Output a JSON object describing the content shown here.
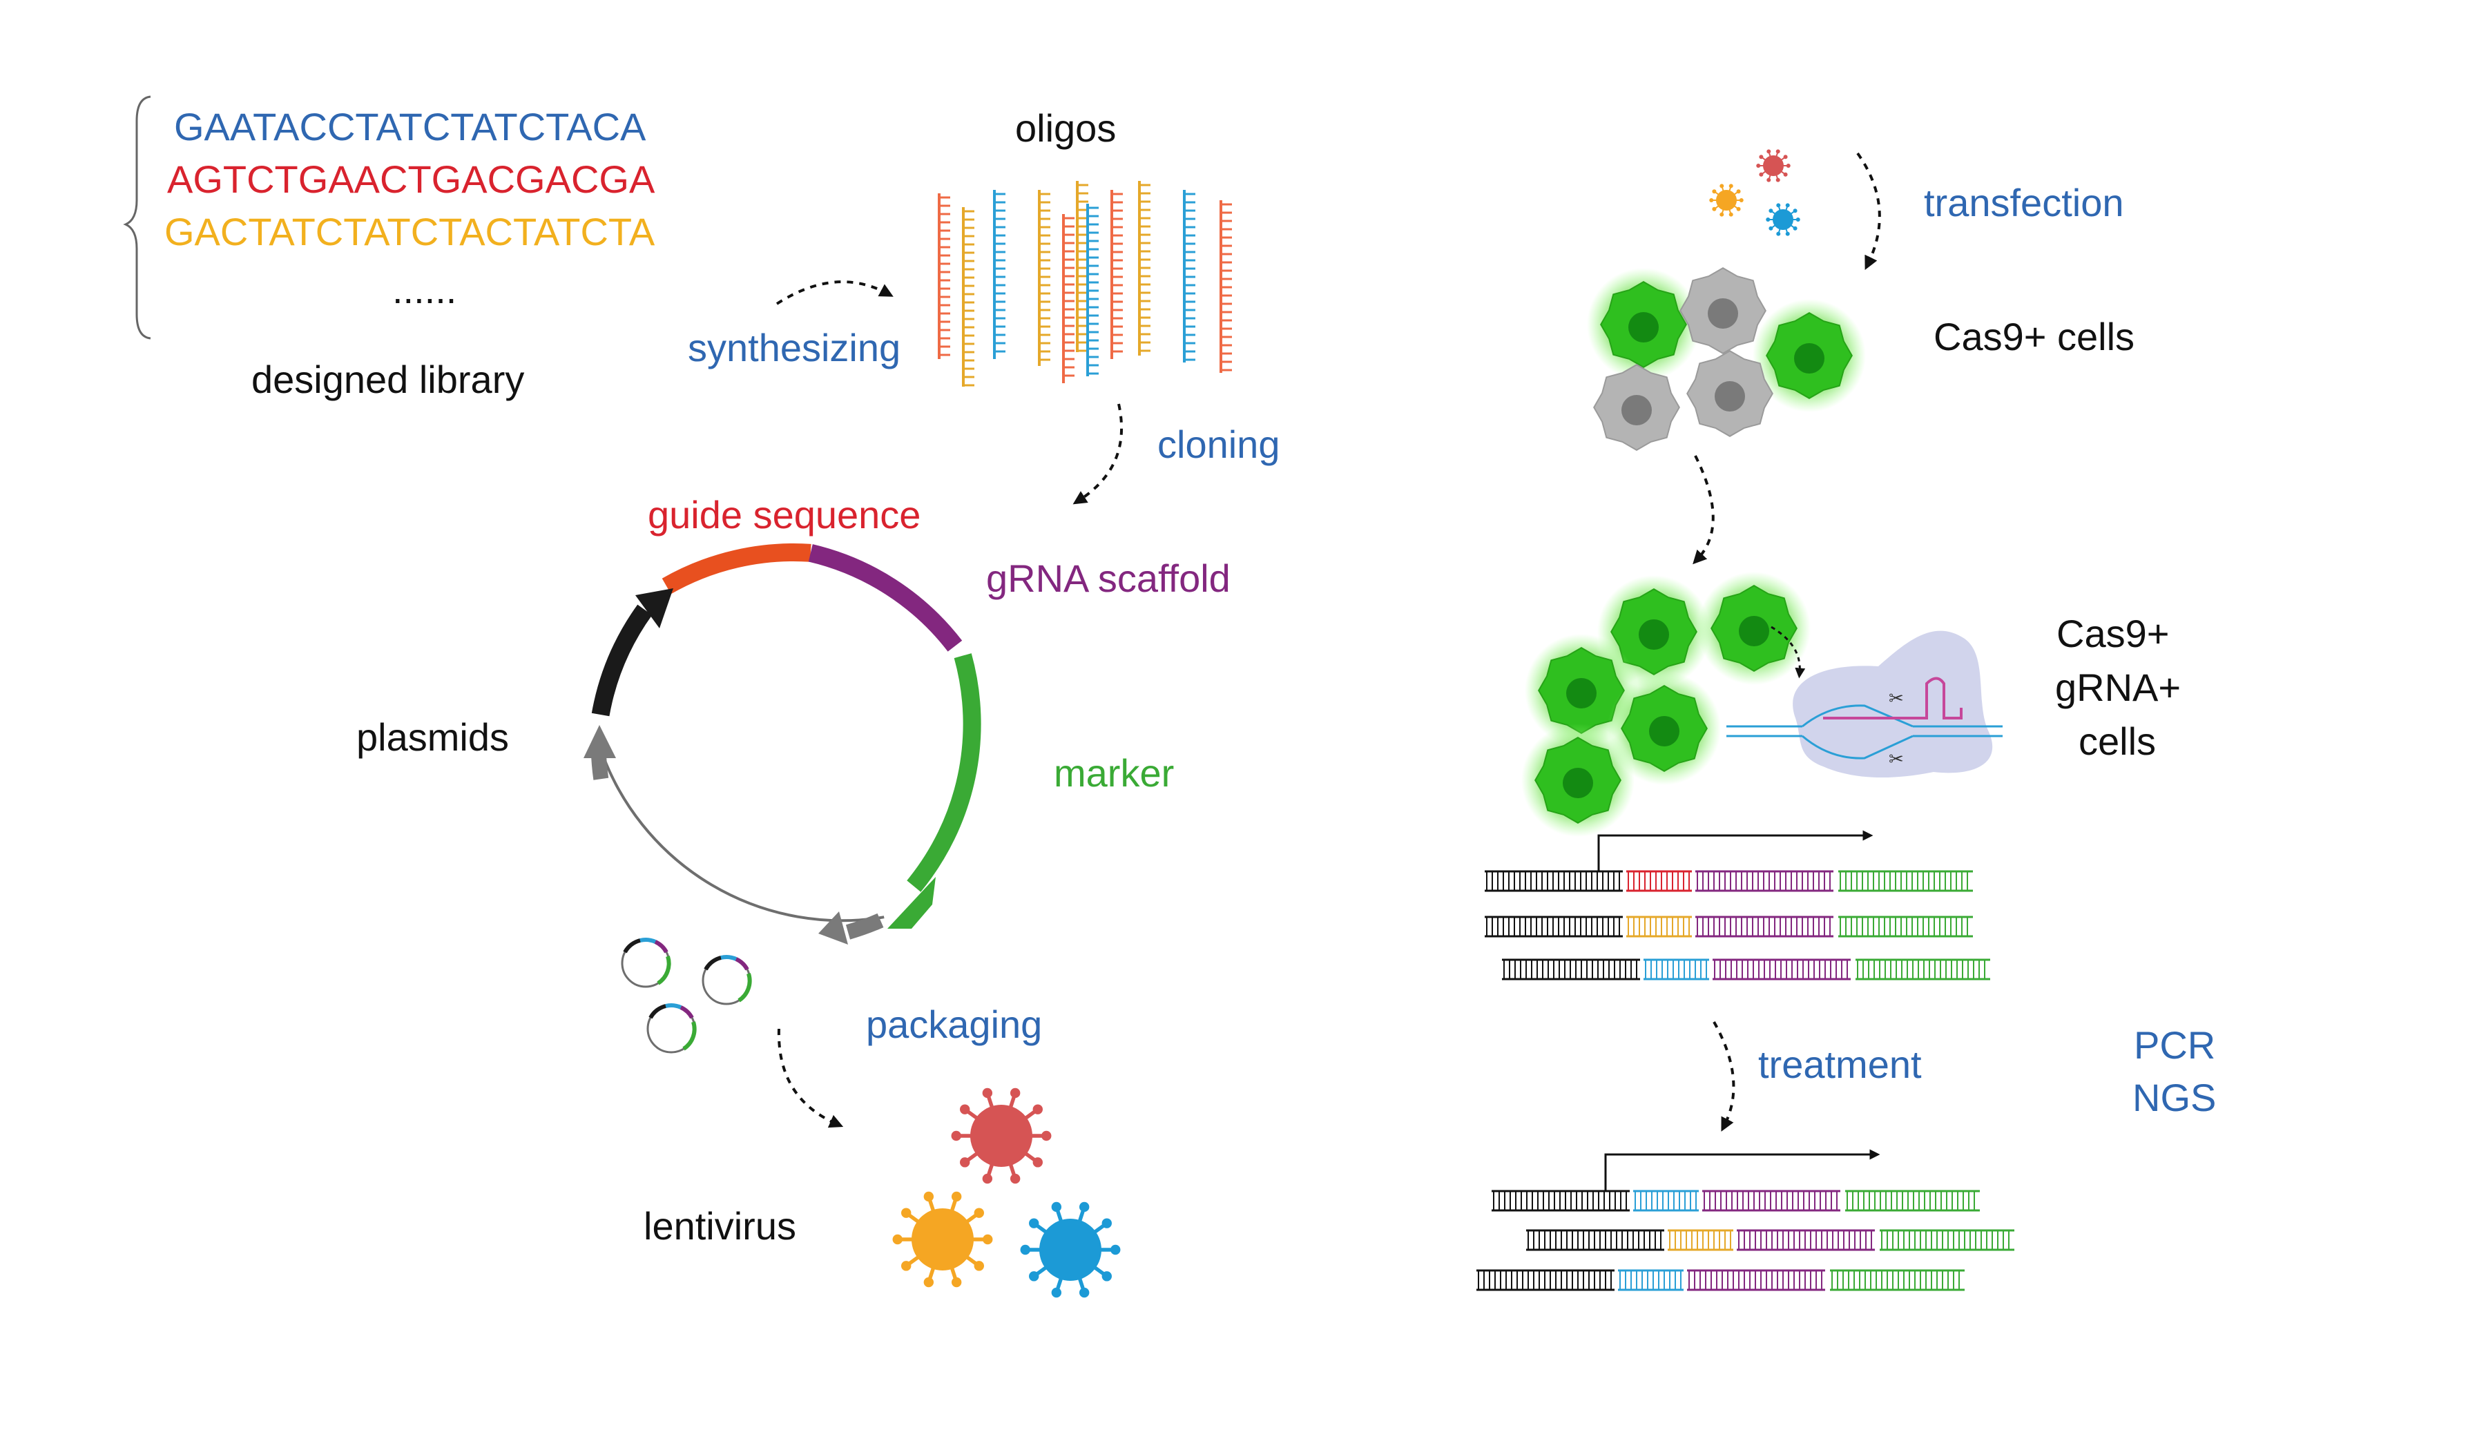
{
  "library": {
    "sequences": [
      {
        "text": "GAATACCTATCTATCTACA",
        "color": "#2f67b1"
      },
      {
        "text": "AGTCTGAACTGACGACGA",
        "color": "#d9232e"
      },
      {
        "text": "GACTATCTATCTACTATCTA",
        "color": "#f2b01e"
      }
    ],
    "ellipsis": "......",
    "label": "designed library"
  },
  "steps": {
    "synthesizing": "synthesizing",
    "oligos": "oligos",
    "cloning": "cloning",
    "packaging": "packaging",
    "transfection": "transfection",
    "treatment": "treatment",
    "pcr": "PCR",
    "ngs": "NGS"
  },
  "plasmid": {
    "label": "plasmids",
    "guide_sequence": "guide sequence",
    "grna_scaffold": "gRNA scaffold",
    "marker": "marker"
  },
  "virus": {
    "label": "lentivirus"
  },
  "cells": {
    "cas9": "Cas9+ cells",
    "cas9_grna_1": "Cas9+",
    "cas9_grna_2": "gRNA+",
    "cas9_grna_3": "cells"
  },
  "colors": {
    "step_text": "#2f67b1",
    "guide": "#e8501f",
    "scaffold": "#83277f",
    "marker": "#3aaa35",
    "oligo_red": "#ef6a45",
    "oligo_blue": "#2a9fd6",
    "oligo_gold": "#e5a82a",
    "virus_red": "#d65454",
    "virus_orange": "#f5a623",
    "virus_blue": "#1c9ad6",
    "cell_green": "#2fbf1f",
    "cell_gray": "#b4b4b4"
  }
}
